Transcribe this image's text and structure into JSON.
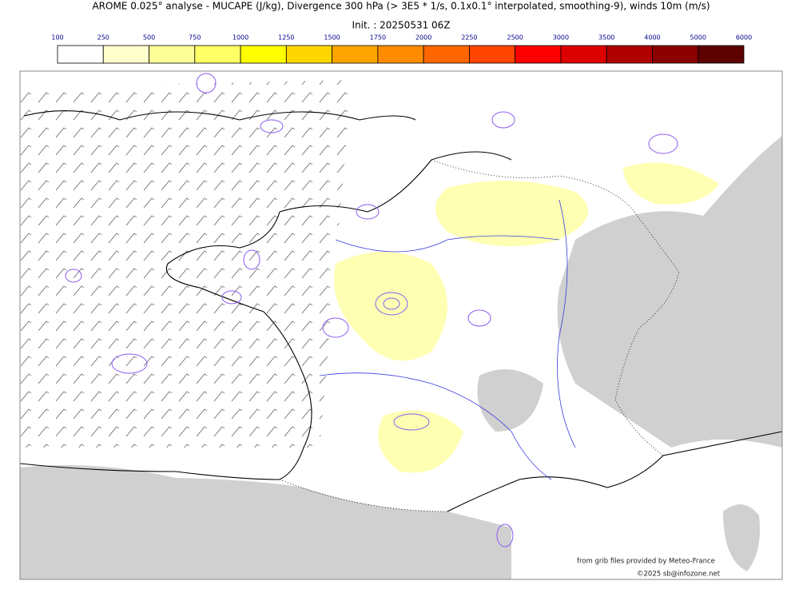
{
  "title": "AROME 0.025° analyse - MUCAPE (J/kg), Divergence 300 hPa (> 3E5 * 1/s, 0.1x0.1° interpolated, smoothing-9), winds 10m (m/s)",
  "subtitle": "Init. : 20250531 06Z",
  "colorbar": {
    "ticks": [
      100,
      250,
      500,
      750,
      1000,
      1250,
      1500,
      1750,
      2000,
      2250,
      2500,
      3000,
      3500,
      4000,
      5000,
      6000
    ],
    "colors": [
      "#ffffff",
      "#ffffcc",
      "#ffff99",
      "#ffff66",
      "#ffff00",
      "#ffd700",
      "#ffa500",
      "#ff8c00",
      "#ff6600",
      "#ff4500",
      "#ff0000",
      "#dd0000",
      "#b00000",
      "#8b0000",
      "#5c0000"
    ]
  },
  "credits": [
    "from grib files provided by Meteo-France",
    "©2025 sb@infozone.net"
  ]
}
